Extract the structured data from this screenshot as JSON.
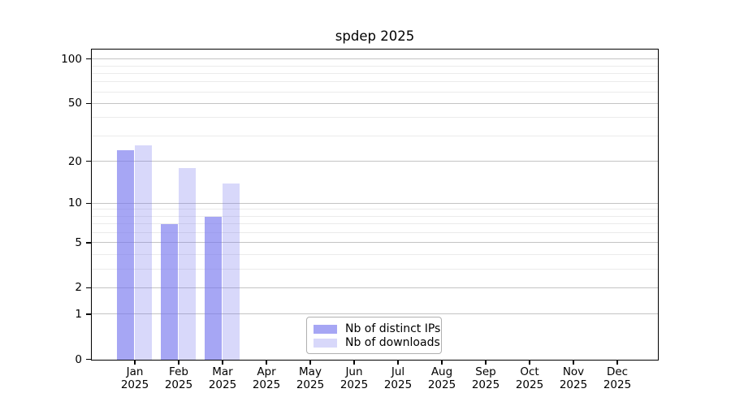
{
  "chart_data": {
    "type": "bar",
    "title": "spdep 2025",
    "categories": [
      "Jan",
      "Feb",
      "Mar",
      "Apr",
      "May",
      "Jun",
      "Jul",
      "Aug",
      "Sep",
      "Oct",
      "Nov",
      "Dec"
    ],
    "category_year_label": "2025",
    "series": [
      {
        "name": "Nb of distinct IPs",
        "color": "rgba(115,115,238,0.64)",
        "values": [
          24,
          7,
          8,
          0,
          0,
          0,
          0,
          0,
          0,
          0,
          0,
          0
        ]
      },
      {
        "name": "Nb of downloads",
        "color": "rgba(115,115,238,0.28)",
        "values": [
          26,
          18,
          14,
          0,
          0,
          0,
          0,
          0,
          0,
          0,
          0,
          0
        ]
      }
    ],
    "yscale": "log1p",
    "ylim": [
      0,
      115
    ],
    "yticks": [
      0,
      1,
      2,
      5,
      10,
      20,
      50,
      100
    ],
    "yticks_minor": [
      3,
      4,
      6,
      7,
      8,
      9,
      30,
      40,
      60,
      70,
      80,
      90
    ],
    "grid": {
      "major_color": "#c4c4c4",
      "minor_color": "#ebebeb"
    },
    "legend": {
      "position": "bottom-center-inside",
      "border_color": "#b0b0b0"
    },
    "xlabel": "",
    "ylabel": ""
  }
}
